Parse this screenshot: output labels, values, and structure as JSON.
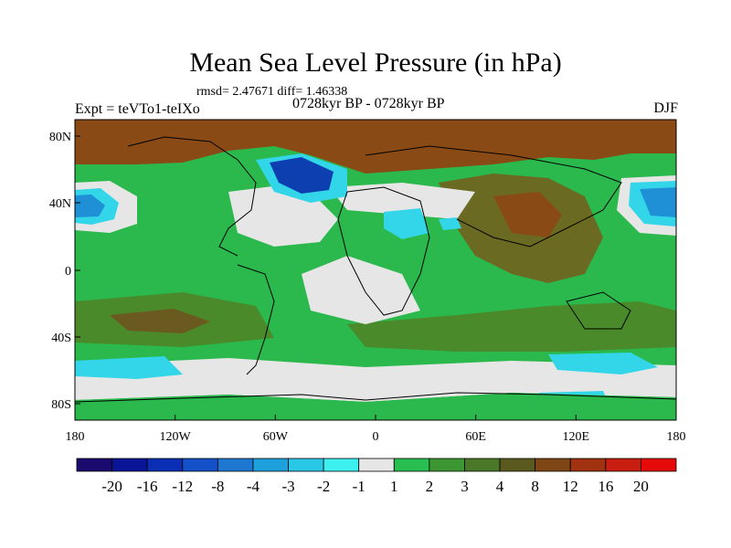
{
  "title": "Mean Sea Level Pressure (in hPa)",
  "stats_text": "rmsd= 2.47671 diff= 1.46338",
  "period_text": "0728kyr BP - 0728kyr BP",
  "experiment_text": "Expt = teVTo1-teIXo",
  "season": "DJF",
  "map": {
    "lat_labels": [
      "80N",
      "40N",
      "0",
      "40S",
      "80S"
    ],
    "lon_labels": [
      "180",
      "120W",
      "60W",
      "0",
      "60E",
      "120E",
      "180"
    ]
  },
  "colorbar": {
    "labels": [
      "-20",
      "-16",
      "-12",
      "-8",
      "-4",
      "-3",
      "-2",
      "-1",
      "1",
      "2",
      "3",
      "4",
      "8",
      "12",
      "16",
      "20"
    ],
    "colors": [
      "#1a0a6e",
      "#0a1496",
      "#0a2fb4",
      "#1450c8",
      "#1e78d2",
      "#1ea0dc",
      "#28c8e6",
      "#3cf0f0",
      "#e6e6e6",
      "#28be50",
      "#3c9632",
      "#4b7828",
      "#5a5a1e",
      "#7d4614",
      "#a0320f",
      "#c81e0f",
      "#e60a0a"
    ]
  },
  "colors": {
    "neutral": "#e6e6e6",
    "pos_low": "#2bb84c",
    "pos_mid": "#4a8a2a",
    "pos_high": "#8a4a16",
    "neg_low": "#33d6e8",
    "neg_mid": "#1f8fd6",
    "neg_high": "#0d3fb0"
  }
}
